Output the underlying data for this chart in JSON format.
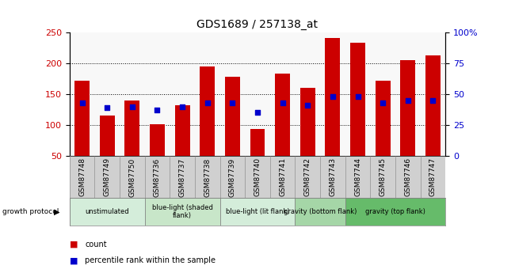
{
  "title": "GDS1689 / 257138_at",
  "samples": [
    "GSM87748",
    "GSM87749",
    "GSM87750",
    "GSM87736",
    "GSM87737",
    "GSM87738",
    "GSM87739",
    "GSM87740",
    "GSM87741",
    "GSM87742",
    "GSM87743",
    "GSM87744",
    "GSM87745",
    "GSM87746",
    "GSM87747"
  ],
  "counts": [
    172,
    115,
    140,
    101,
    132,
    195,
    178,
    93,
    184,
    160,
    241,
    234,
    172,
    206,
    213
  ],
  "percentile_ranks": [
    43,
    39,
    40,
    37,
    40,
    43,
    43,
    35,
    43,
    41,
    48,
    48,
    43,
    45,
    45
  ],
  "bar_color": "#cc0000",
  "dot_color": "#0000cc",
  "ymin": 50,
  "ymax": 250,
  "yticks": [
    50,
    100,
    150,
    200,
    250
  ],
  "right_yticks": [
    0,
    25,
    50,
    75,
    100
  ],
  "groups": [
    {
      "label": "unstimulated",
      "start": 0,
      "end": 3,
      "color": "#d4edda"
    },
    {
      "label": "blue-light (shaded\nflank)",
      "start": 3,
      "end": 6,
      "color": "#c8e6c9"
    },
    {
      "label": "blue-light (lit flank)",
      "start": 6,
      "end": 9,
      "color": "#d4edda"
    },
    {
      "label": "gravity (bottom flank)",
      "start": 9,
      "end": 11,
      "color": "#a5d6a7"
    },
    {
      "label": "gravity (top flank)",
      "start": 11,
      "end": 15,
      "color": "#66bb6a"
    }
  ],
  "group_label_prefix": "growth protocol",
  "legend_items": [
    {
      "label": "count",
      "color": "#cc0000"
    },
    {
      "label": "percentile rank within the sample",
      "color": "#0000cc"
    }
  ],
  "plot_bg_color": "#f8f8f8",
  "tick_area_color": "#d0d0d0"
}
